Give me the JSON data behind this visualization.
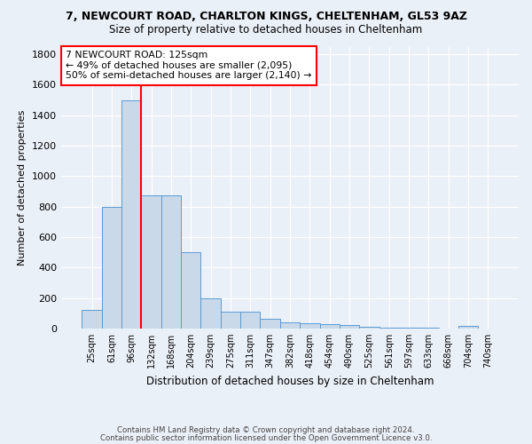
{
  "title1": "7, NEWCOURT ROAD, CHARLTON KINGS, CHELTENHAM, GL53 9AZ",
  "title2": "Size of property relative to detached houses in Cheltenham",
  "xlabel": "Distribution of detached houses by size in Cheltenham",
  "ylabel": "Number of detached properties",
  "footnote1": "Contains HM Land Registry data © Crown copyright and database right 2024.",
  "footnote2": "Contains public sector information licensed under the Open Government Licence v3.0.",
  "annotation_line1": "7 NEWCOURT ROAD: 125sqm",
  "annotation_line2": "← 49% of detached houses are smaller (2,095)",
  "annotation_line3": "50% of semi-detached houses are larger (2,140) →",
  "bar_labels": [
    "25sqm",
    "61sqm",
    "96sqm",
    "132sqm",
    "168sqm",
    "204sqm",
    "239sqm",
    "275sqm",
    "311sqm",
    "347sqm",
    "382sqm",
    "418sqm",
    "454sqm",
    "490sqm",
    "525sqm",
    "561sqm",
    "597sqm",
    "633sqm",
    "668sqm",
    "704sqm",
    "740sqm"
  ],
  "bar_values": [
    125,
    800,
    1500,
    875,
    875,
    500,
    200,
    110,
    110,
    65,
    40,
    35,
    30,
    25,
    10,
    5,
    5,
    5,
    0,
    15,
    0
  ],
  "bar_color": "#c9d9ea",
  "bar_edge_color": "#5b9bd5",
  "red_line_x": 2.5,
  "background_color": "#eaf0f8",
  "ylim": [
    0,
    1850
  ],
  "yticks": [
    0,
    200,
    400,
    600,
    800,
    1000,
    1200,
    1400,
    1600,
    1800
  ]
}
